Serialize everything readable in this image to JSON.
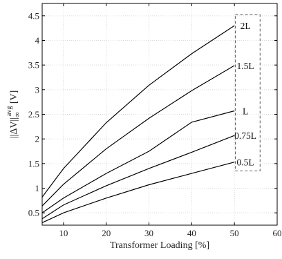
{
  "chart_data": {
    "type": "line",
    "title": "",
    "xlabel": "Transformer Loading [%]",
    "ylabel": {
      "base": "||ΔV||",
      "sub": "∞",
      "sup": "avg",
      "unit": " [V]"
    },
    "xlim": [
      5,
      60
    ],
    "ylim": [
      0.25,
      4.75
    ],
    "xticks": [
      10,
      20,
      30,
      40,
      50,
      60
    ],
    "yticks": [
      0.5,
      1,
      1.5,
      2,
      2.5,
      3,
      3.5,
      4,
      4.5
    ],
    "ytick_labels": [
      "0.5",
      "1",
      "1.5",
      "2",
      "2.5",
      "3",
      "3.5",
      "4",
      "4.5"
    ],
    "grid": true,
    "x": [
      5,
      10,
      20,
      30,
      40,
      50
    ],
    "series": [
      {
        "name": "2L",
        "values": [
          0.82,
          1.4,
          2.33,
          3.09,
          3.73,
          4.3
        ]
      },
      {
        "name": "1.5L",
        "values": [
          0.64,
          1.08,
          1.8,
          2.42,
          2.98,
          3.49
        ]
      },
      {
        "name": "L",
        "values": [
          0.5,
          0.8,
          1.3,
          1.75,
          2.34,
          2.57
        ]
      },
      {
        "name": "0.75L",
        "values": [
          0.38,
          0.66,
          1.05,
          1.4,
          1.73,
          2.07
        ]
      },
      {
        "name": "0.5L",
        "values": [
          0.3,
          0.5,
          0.8,
          1.07,
          1.3,
          1.53
        ]
      }
    ],
    "annotation_box": {
      "x_range": [
        50.2,
        56
      ],
      "y_range": [
        1.35,
        4.52
      ]
    }
  }
}
